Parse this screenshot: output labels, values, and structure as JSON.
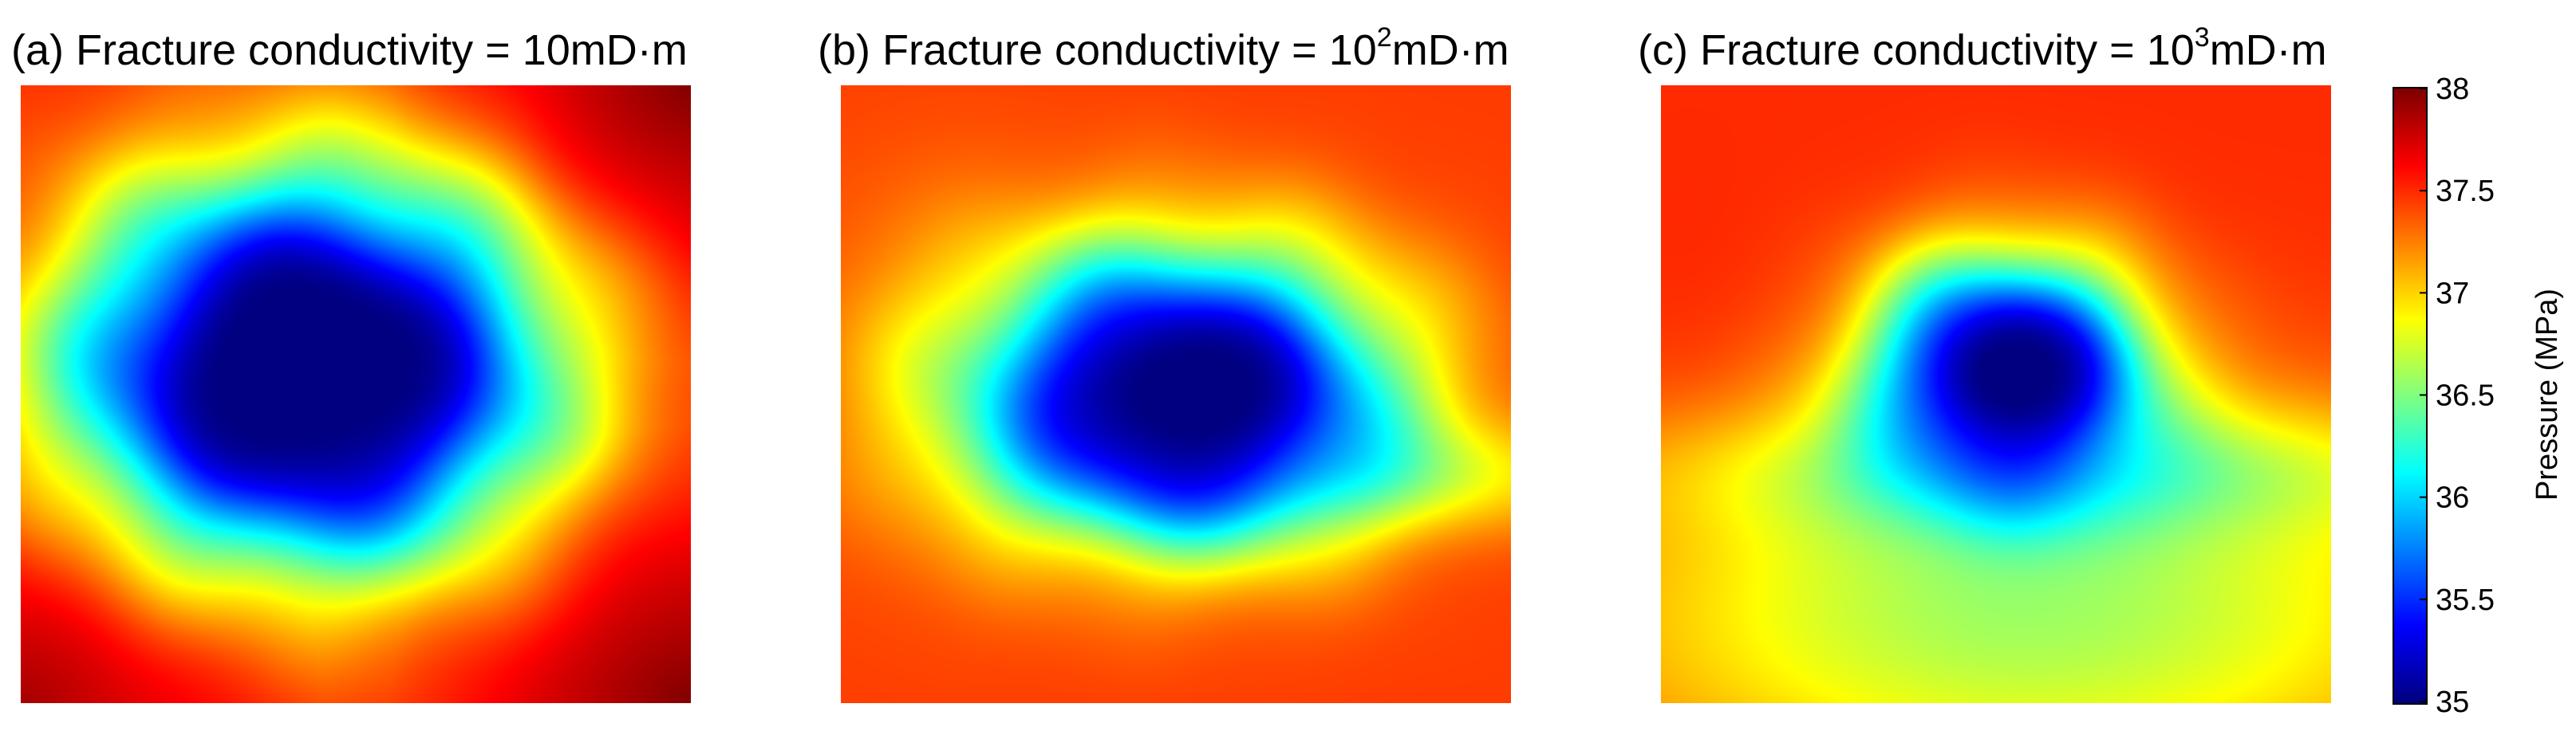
{
  "chart_data": {
    "type": "heatmap",
    "panels": [
      {
        "prefix": "(a) Fracture conductivity = 10",
        "exponent": "",
        "suffix": "mD·m",
        "field": {
          "background": 37.5,
          "corner_peaks": [
            {
              "corner": "top-right",
              "value": 38.0
            },
            {
              "corner": "bottom-right",
              "value": 38.0
            },
            {
              "corner": "bottom-left",
              "value": 37.9
            }
          ],
          "depression": {
            "center": [
              0.43,
              0.46
            ],
            "radii": [
              0.25,
              0.22
            ],
            "min": 35.0,
            "flat_core": 0.48
          },
          "gradients": []
        }
      },
      {
        "prefix": "(b) Fracture conductivity = 10",
        "exponent": "2",
        "suffix": "mD·m",
        "field": {
          "background": 37.45,
          "corner_peaks": [],
          "depression": {
            "center": [
              0.51,
              0.5
            ],
            "radii": [
              0.24,
              0.18
            ],
            "min": 35.0,
            "flat_core": 0.3
          },
          "gradients": [
            {
              "center": [
                0.75,
                0.63
              ],
              "radii": [
                0.45,
                0.1
              ],
              "value": -0.6
            },
            {
              "center": [
                0.15,
                0.45
              ],
              "radii": [
                0.25,
                0.35
              ],
              "value": -0.2
            }
          ]
        }
      },
      {
        "prefix": "(c) Fracture conductivity = 10",
        "exponent": "3",
        "suffix": "mD·m",
        "field": {
          "background": 37.5,
          "corner_peaks": [],
          "depression": {
            "center": [
              0.52,
              0.47
            ],
            "radii": [
              0.16,
              0.15
            ],
            "min": 35.0,
            "flat_core": 0.25
          },
          "gradients": [
            {
              "center": [
                0.55,
                0.85
              ],
              "radii": [
                0.75,
                0.35
              ],
              "value": -0.9
            },
            {
              "center": [
                0.6,
                0.62
              ],
              "radii": [
                0.6,
                0.12
              ],
              "value": -0.6
            },
            {
              "center": [
                0.05,
                0.55
              ],
              "radii": [
                0.15,
                0.35
              ],
              "value": 0.05
            }
          ]
        }
      }
    ],
    "colorbar": {
      "label": "Pressure (MPa)",
      "min": 35,
      "max": 38,
      "ticks": [
        "35",
        "35.5",
        "36",
        "36.5",
        "37",
        "37.5",
        "38"
      ],
      "colormap": "jet"
    }
  }
}
